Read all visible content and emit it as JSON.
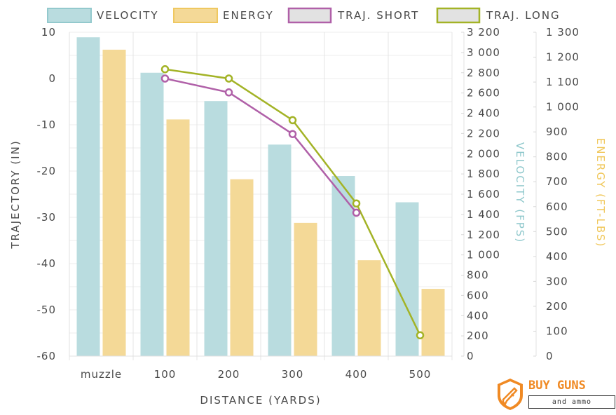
{
  "chart_data": {
    "type": "bar",
    "categories": [
      "muzzle",
      "100",
      "200",
      "300",
      "400",
      "500"
    ],
    "xlabel": "DISTANCE (YARDS)",
    "axes": {
      "trajectory": {
        "label": "TRAJECTORY (IN)",
        "min": -60,
        "max": 10,
        "step": 10,
        "ticks": [
          "10",
          "0",
          "-10",
          "-20",
          "-30",
          "-40",
          "-50",
          "-60"
        ]
      },
      "velocity": {
        "label": "VELOCITY (FPS)",
        "min": 0,
        "max": 3200,
        "step": 200,
        "ticks": [
          "0",
          "200",
          "400",
          "600",
          "800",
          "1 000",
          "1 200",
          "1 400",
          "1 600",
          "1 800",
          "2 000",
          "2 200",
          "2 400",
          "2 600",
          "2 800",
          "3 000",
          "3 200"
        ]
      },
      "energy": {
        "label": "ENERGY (FT-LBS)",
        "min": 0,
        "max": 1300,
        "step": 100,
        "ticks": [
          "0",
          "100",
          "200",
          "300",
          "400",
          "500",
          "600",
          "700",
          "800",
          "900",
          "1 000",
          "1 100",
          "1 200",
          "1 300"
        ]
      }
    },
    "series": [
      {
        "name": "VELOCITY",
        "kind": "bar",
        "axis": "velocity",
        "color": "#b9dcdf",
        "values": [
          3150,
          2800,
          2520,
          2090,
          1780,
          1520
        ]
      },
      {
        "name": "ENERGY",
        "kind": "bar",
        "axis": "energy",
        "color": "#f4d997",
        "values": [
          1230,
          950,
          710,
          535,
          385,
          270
        ]
      },
      {
        "name": "TRAJ. SHORT",
        "kind": "line",
        "axis": "trajectory",
        "color": "#b060a8",
        "values": [
          null,
          0,
          -3,
          -12,
          -29,
          null
        ]
      },
      {
        "name": "TRAJ. LONG",
        "kind": "line",
        "axis": "trajectory",
        "color": "#a3b326",
        "values": [
          null,
          2,
          0,
          -9,
          -27,
          -55.5
        ]
      }
    ],
    "legend_position": "top",
    "grid": true
  },
  "logo": {
    "top_text": "BUY GUNS",
    "bottom_text": "and ammo"
  }
}
